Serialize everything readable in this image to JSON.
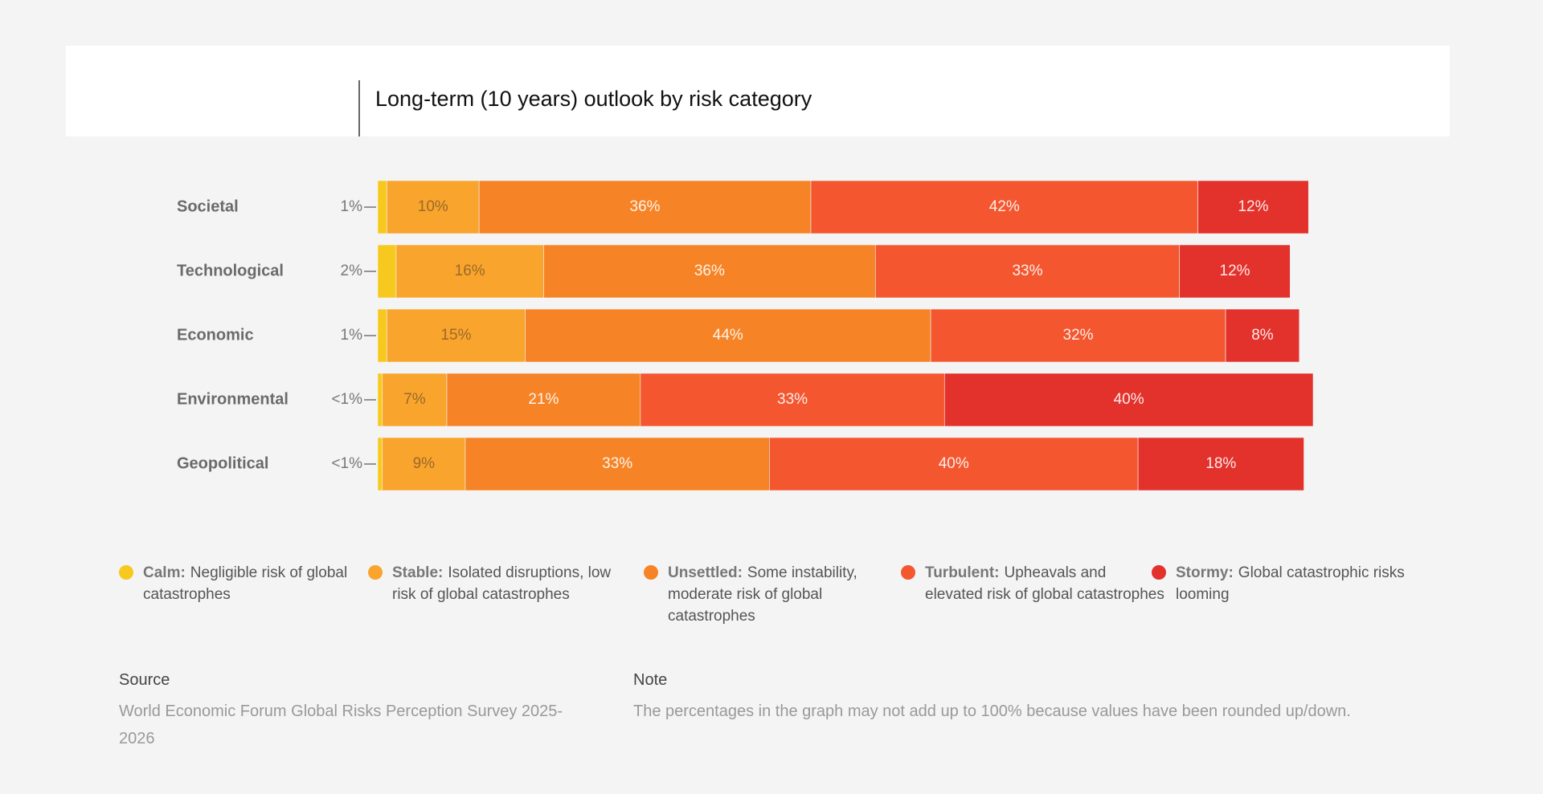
{
  "chart_data": {
    "type": "stacked-bar-horizontal",
    "title": "Long-term (10 years) outlook by risk category",
    "categories": [
      "Societal",
      "Technological",
      "Economic",
      "Environmental",
      "Geopolitical"
    ],
    "series": [
      {
        "name": "Calm:",
        "description": "Negligible risk of global catastrophes",
        "color": "#f7c81e",
        "values": [
          1,
          2,
          1,
          0.5,
          0.5
        ],
        "value_labels": [
          "1%",
          "2%",
          "1%",
          "<1%",
          "<1%"
        ]
      },
      {
        "name": "Stable:",
        "description": "Isolated disruptions, low risk of global catastrophes",
        "color": "#f9a42c",
        "values": [
          10,
          16,
          15,
          7,
          9
        ],
        "value_labels": [
          "10%",
          "16%",
          "15%",
          "7%",
          "9%"
        ]
      },
      {
        "name": "Unsettled:",
        "description": "Some instability, moderate risk of global catastrophes",
        "color": "#f68426",
        "values": [
          36,
          36,
          44,
          21,
          33
        ],
        "value_labels": [
          "36%",
          "36%",
          "44%",
          "21%",
          "33%"
        ]
      },
      {
        "name": "Turbulent:",
        "description": "Upheavals and elevated risk of global catastrophes",
        "color": "#f4572f",
        "values": [
          42,
          33,
          32,
          33,
          40
        ],
        "value_labels": [
          "42%",
          "33%",
          "32%",
          "33%",
          "40%"
        ]
      },
      {
        "name": "Stormy:",
        "description": "Global catastrophic risks looming",
        "color": "#e3312b",
        "values": [
          12,
          12,
          8,
          40,
          18
        ],
        "value_labels": [
          "12%",
          "12%",
          "8%",
          "40%",
          "18%"
        ]
      }
    ],
    "source": {
      "heading": "Source",
      "text": "World Economic Forum Global Risks Perception Survey 2025-2026"
    },
    "note": {
      "heading": "Note",
      "text": "The percentages in the graph may not add up to 100% because values have been rounded up/down."
    }
  }
}
